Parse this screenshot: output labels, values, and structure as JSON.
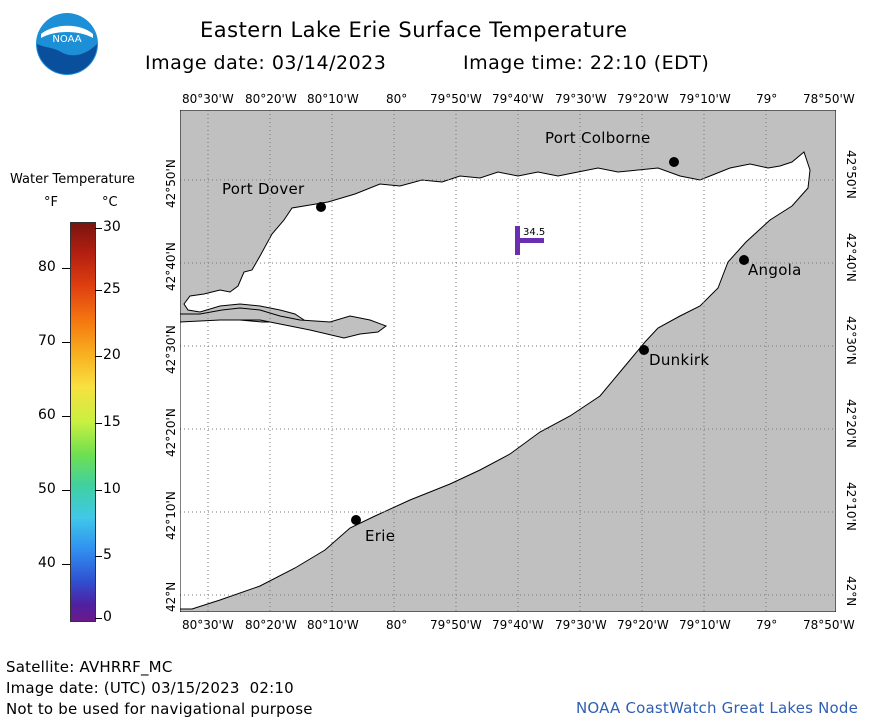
{
  "header": {
    "title": "Eastern Lake Erie Surface Temperature",
    "image_date_label": "Image date: 03/14/2023",
    "image_time_label": "Image time: 22:10 (EDT)"
  },
  "logo": {
    "text": "NOAA"
  },
  "legend": {
    "title": "Water Temperature",
    "unit_f": "°F",
    "unit_c": "°C",
    "f_ticks": [
      "80",
      "70",
      "60",
      "50",
      "40"
    ],
    "c_ticks": [
      "30",
      "25",
      "20",
      "15",
      "10",
      "5",
      "0"
    ]
  },
  "map": {
    "lon_labels": [
      "80°30'W",
      "80°20'W",
      "80°10'W",
      "80°",
      "79°50'W",
      "79°40'W",
      "79°30'W",
      "79°20'W",
      "79°10'W",
      "79°",
      "78°50'W"
    ],
    "lat_labels": [
      "42°50'N",
      "42°40'N",
      "42°30'N",
      "42°20'N",
      "42°10'N",
      "42°N"
    ],
    "cities": [
      "Port Colborne",
      "Port Dover",
      "Angola",
      "Dunkirk",
      "Erie"
    ],
    "buoy_value": "34.5",
    "colors": {
      "land": "#c0c0c0",
      "water": "#ffffff",
      "buoy": "#6a2fb0"
    }
  },
  "footer": {
    "satellite": "Satellite: AVHRRF_MC",
    "utc_date": "Image date: (UTC) 03/15/2023  02:10",
    "disclaimer": "Not to be used for navigational purpose",
    "credit": "NOAA CoastWatch Great Lakes Node"
  }
}
